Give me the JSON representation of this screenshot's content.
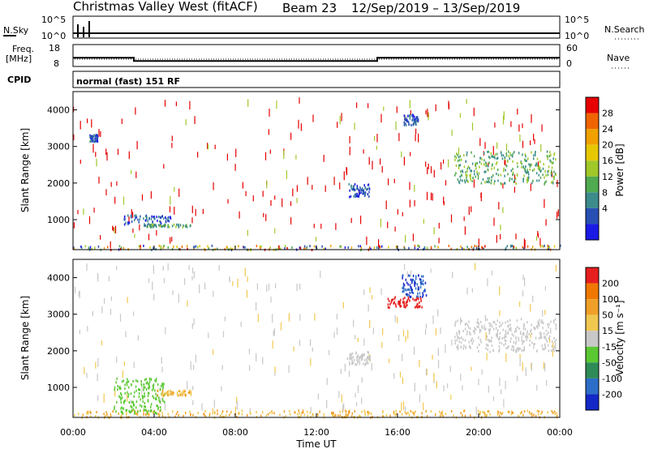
{
  "header": {
    "station": "Christmas Valley West (fitACF)",
    "beam": "Beam 23",
    "date_range": "12/Sep/2019 – 13/Sep/2019"
  },
  "panels": {
    "nsky": {
      "label": "N.Sky",
      "tick_top": "10^5",
      "tick_bottom": "10^0"
    },
    "nsearch": {
      "label": "N.Search",
      "tick_top": "10^5",
      "tick_bottom": "10^0"
    },
    "freq": {
      "label_line1": "Freq.",
      "label_line2": "[MHz]",
      "tick_top": "18",
      "tick_bottom": "8"
    },
    "nave": {
      "label": "Nave",
      "tick_top": "60",
      "tick_bottom": "0"
    },
    "cpid": {
      "label": "CPID",
      "mode_text": "normal (fast) 151 RF"
    }
  },
  "axes": {
    "ylabel": "Slant Range [km]",
    "xlabel": "Time UT",
    "x_ticks": [
      "00:00",
      "04:00",
      "08:00",
      "12:00",
      "16:00",
      "20:00",
      "00:00"
    ],
    "y_ticks": [
      "1000",
      "2000",
      "3000",
      "4000"
    ]
  },
  "colorbars": {
    "power": {
      "label": "Power [dB]",
      "ticks": [
        "4",
        "8",
        "12",
        "16",
        "20",
        "24",
        "28"
      ],
      "colors": [
        "#1a1ae6",
        "#2850b4",
        "#3c8c8c",
        "#50aa50",
        "#a0c828",
        "#e6c800",
        "#f0a000",
        "#f06400",
        "#e60000"
      ]
    },
    "velocity": {
      "label": "Velocity [m s⁻¹]",
      "ticks": [
        "200",
        "100",
        "50",
        "15",
        "-15",
        "-50",
        "-100",
        "-200"
      ],
      "colors": [
        "#1428c8",
        "#2d6ec8",
        "#2e8b57",
        "#5ac832",
        "#c8c8c8",
        "#f0c850",
        "#f0a028",
        "#f07800",
        "#e61e1e"
      ]
    }
  },
  "chart_data": {
    "type": "heatmap",
    "x_range_hours": [
      0,
      24
    ],
    "y_range_km": [
      180,
      4500
    ],
    "freq_series": {
      "name": "Freq.",
      "x_hours": [
        0,
        3,
        3,
        15,
        15,
        24
      ],
      "y_mhz": [
        12,
        12,
        10.5,
        10.5,
        12,
        12
      ]
    },
    "power_regions": [
      {
        "t0": 0.0,
        "t1": 24.0,
        "r0": 200,
        "r1": 320,
        "level": "mixed"
      },
      {
        "t0": 2.5,
        "t1": 4.8,
        "r0": 850,
        "r1": 1150,
        "level": "low"
      },
      {
        "t0": 3.6,
        "t1": 5.8,
        "r0": 820,
        "r1": 900,
        "level": "mid"
      },
      {
        "t0": 0.8,
        "t1": 1.2,
        "r0": 3150,
        "r1": 3350,
        "level": "low"
      },
      {
        "t0": 13.5,
        "t1": 14.6,
        "r0": 1650,
        "r1": 2000,
        "level": "low"
      },
      {
        "t0": 16.3,
        "t1": 17.0,
        "r0": 3600,
        "r1": 3900,
        "level": "low"
      },
      {
        "t0": 18.8,
        "t1": 23.8,
        "r0": 2000,
        "r1": 2900,
        "level": "mid"
      }
    ],
    "velocity_regions": [
      {
        "t0": 0.0,
        "t1": 24.0,
        "r0": 200,
        "r1": 400,
        "vel": "negative"
      },
      {
        "t0": 2.0,
        "t1": 4.5,
        "r0": 300,
        "r1": 1300,
        "vel": "positive"
      },
      {
        "t0": 4.0,
        "t1": 5.8,
        "r0": 800,
        "r1": 950,
        "vel": "negative"
      },
      {
        "t0": 16.2,
        "t1": 17.4,
        "r0": 3500,
        "r1": 4100,
        "vel": "high"
      },
      {
        "t0": 15.5,
        "t1": 17.2,
        "r0": 3200,
        "r1": 3500,
        "vel": "low"
      },
      {
        "t0": 18.8,
        "t1": 23.8,
        "r0": 2000,
        "r1": 2900,
        "vel": "near-zero"
      },
      {
        "t0": 13.5,
        "t1": 14.6,
        "r0": 1650,
        "r1": 2000,
        "vel": "near-zero"
      }
    ]
  }
}
